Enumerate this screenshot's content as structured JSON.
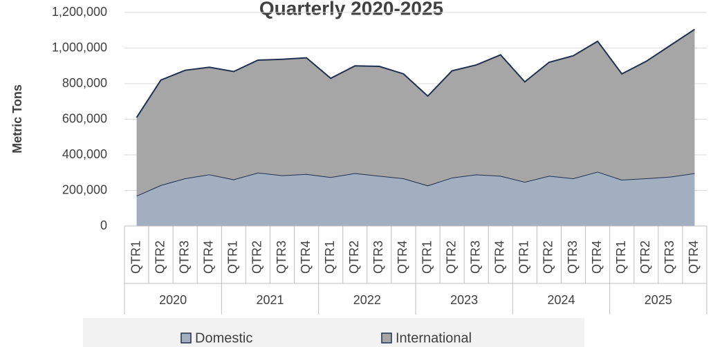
{
  "chart_data": {
    "type": "stacked_area",
    "title": "Quarterly 2020-2025",
    "y_axis_label": "Metric Tons",
    "categories": [
      "QTR1",
      "QTR2",
      "QTR3",
      "QTR4",
      "QTR1",
      "QTR2",
      "QTR3",
      "QTR4",
      "QTR1",
      "QTR2",
      "QTR3",
      "QTR4",
      "QTR1",
      "QTR2",
      "QTR3",
      "QTR4",
      "QTR1",
      "QTR2",
      "QTR3",
      "QTR4",
      "QTR1",
      "QTR2",
      "QTR3",
      "QTR4"
    ],
    "category_groups": [
      "2020",
      "2021",
      "2022",
      "2023",
      "2024",
      "2025"
    ],
    "series": [
      {
        "name": "Domestic",
        "color": "#a2afc0",
        "line_color": "#1f3050",
        "values": [
          170000,
          230000,
          268000,
          290000,
          262000,
          300000,
          285000,
          292000,
          275000,
          297000,
          282000,
          268000,
          228000,
          272000,
          290000,
          282000,
          248000,
          282000,
          268000,
          305000,
          260000,
          268000,
          277000,
          297000
        ]
      },
      {
        "name": "International",
        "color": "#a6a6a6",
        "line_color": "#1f3050",
        "values": [
          440000,
          590000,
          607000,
          602000,
          606000,
          632000,
          652000,
          653000,
          555000,
          603000,
          615000,
          587000,
          502000,
          600000,
          615000,
          680000,
          562000,
          638000,
          689000,
          733000,
          595000,
          657000,
          738000,
          808000
        ]
      }
    ],
    "ylim": [
      0,
      1200000
    ],
    "yticks": [
      0,
      {
        "value": 200000,
        "label": "200,000"
      },
      {
        "value": 400000,
        "label": "400,000"
      },
      {
        "value": 600000,
        "label": "600,000"
      },
      {
        "value": 800000,
        "label": "800,000"
      },
      {
        "value": 1000000,
        "label": "1,000,000"
      },
      {
        "value": 1200000,
        "label": "1,200,000"
      }
    ],
    "grid": true
  }
}
